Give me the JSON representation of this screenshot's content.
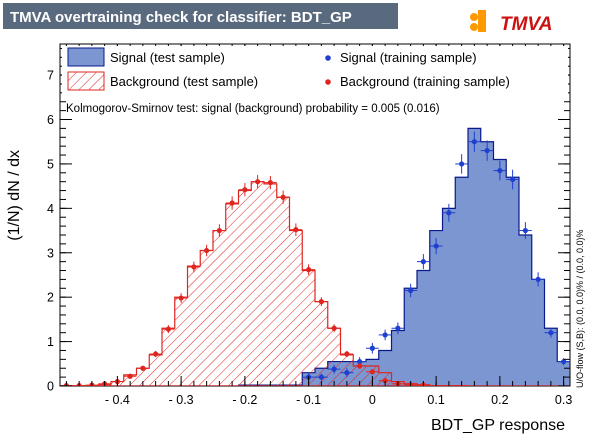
{
  "title": "TMVA overtraining check for classifier: BDT_GP",
  "logo": {
    "text": "TMVA",
    "accent": "#ff9900",
    "text_color": "#cc1111"
  },
  "ks_text": "Kolmogorov-Smirnov test: signal (background) probability = 0.005 (0.016)",
  "side_text": "U/O-flow (S,B): (0.0, 0.0)% / (0.0, 0.0)%",
  "legend": {
    "signal_test": "Signal (test sample)",
    "background_test": "Background (test sample)",
    "signal_train": "Signal (training sample)",
    "background_train": "Background (training sample)"
  },
  "colors": {
    "title_bg": "#5a6a7e",
    "signal_fill": "#7b96d0",
    "signal_line": "#0a1a8c",
    "signal_marker": "#1f3fcf",
    "background_line": "#e0251f",
    "background_marker": "#e0251f"
  },
  "chart_data": {
    "type": "histogram",
    "xlabel": "BDT_GP response",
    "ylabel": "(1/N) dN / dx",
    "xlim": [
      -0.49,
      0.31
    ],
    "ylim": [
      0,
      7.7
    ],
    "x_ticks": [
      -0.4,
      -0.3,
      -0.2,
      -0.1,
      0,
      0.1,
      0.2,
      0.3
    ],
    "x_tick_labels": [
      "- 0.4",
      "- 0.3",
      "- 0.2",
      "- 0.1",
      "0",
      "0.1",
      "0.2",
      "0.3"
    ],
    "y_ticks": [
      0,
      1,
      2,
      3,
      4,
      5,
      6,
      7
    ],
    "y_tick_labels": [
      "0",
      "1",
      "2",
      "3",
      "4",
      "5",
      "6",
      "7"
    ],
    "bin_edges": [
      -0.49,
      -0.47,
      -0.45,
      -0.43,
      -0.41,
      -0.39,
      -0.37,
      -0.35,
      -0.33,
      -0.31,
      -0.29,
      -0.27,
      -0.25,
      -0.23,
      -0.21,
      -0.19,
      -0.17,
      -0.15,
      -0.13,
      -0.11,
      -0.09,
      -0.07,
      -0.05,
      -0.03,
      -0.01,
      0.01,
      0.03,
      0.05,
      0.07,
      0.09,
      0.11,
      0.13,
      0.15,
      0.17,
      0.19,
      0.21,
      0.23,
      0.25,
      0.27,
      0.29,
      0.31
    ],
    "series": [
      {
        "name": "Signal (test sample)",
        "style": "filled-histogram",
        "values": [
          0,
          0,
          0,
          0,
          0,
          0,
          0,
          0,
          0,
          0,
          0,
          0,
          0,
          0,
          0.02,
          0.02,
          0.02,
          0.02,
          0.02,
          0.3,
          0.4,
          0.55,
          0.55,
          0.55,
          0.6,
          0.8,
          1.25,
          2.2,
          2.6,
          3.5,
          4.0,
          4.7,
          5.8,
          5.5,
          5.1,
          4.7,
          3.4,
          2.4,
          1.3,
          0.55
        ]
      },
      {
        "name": "Background (test sample)",
        "style": "hatched-histogram",
        "values": [
          0,
          0,
          0,
          0.03,
          0.1,
          0.25,
          0.4,
          0.7,
          1.3,
          2.0,
          2.7,
          3.05,
          3.5,
          4.1,
          4.4,
          4.6,
          4.55,
          4.25,
          3.5,
          2.6,
          1.9,
          1.3,
          0.7,
          0.45,
          0.45,
          0.3,
          0.1,
          0.05,
          0.03,
          0.01,
          0.01,
          0.01,
          0,
          0,
          0,
          0,
          0,
          0,
          0,
          0
        ]
      },
      {
        "name": "Signal (training sample)",
        "style": "points",
        "values": [
          null,
          null,
          null,
          null,
          null,
          null,
          null,
          null,
          null,
          null,
          null,
          null,
          null,
          null,
          null,
          null,
          null,
          null,
          null,
          0.2,
          0.2,
          0.38,
          0.3,
          0.55,
          0.85,
          1.15,
          1.3,
          2.15,
          2.8,
          3.15,
          3.9,
          5.0,
          5.5,
          5.3,
          4.85,
          4.65,
          3.5,
          2.4,
          1.2,
          0.55
        ],
        "errors": [
          null,
          null,
          null,
          null,
          null,
          null,
          null,
          null,
          null,
          null,
          null,
          null,
          null,
          null,
          null,
          null,
          null,
          null,
          null,
          0.08,
          0.08,
          0.1,
          0.1,
          0.1,
          0.12,
          0.12,
          0.13,
          0.15,
          0.17,
          0.18,
          0.2,
          0.22,
          0.23,
          0.23,
          0.22,
          0.22,
          0.19,
          0.16,
          0.11,
          0.08
        ]
      },
      {
        "name": "Background (training sample)",
        "style": "points",
        "values": [
          0.01,
          0.01,
          0.02,
          0.05,
          0.1,
          0.22,
          0.4,
          0.72,
          1.28,
          1.98,
          2.68,
          3.05,
          3.5,
          4.12,
          4.42,
          4.6,
          4.58,
          4.25,
          3.52,
          2.62,
          1.9,
          1.3,
          0.72,
          0.45,
          0.32,
          0.12,
          0.05,
          0.03,
          0.02,
          null,
          null,
          null,
          null,
          null,
          null,
          null,
          null,
          null,
          null,
          null
        ],
        "errors": [
          0.01,
          0.01,
          0.01,
          0.02,
          0.03,
          0.04,
          0.05,
          0.07,
          0.09,
          0.11,
          0.12,
          0.13,
          0.14,
          0.15,
          0.15,
          0.15,
          0.15,
          0.15,
          0.14,
          0.12,
          0.1,
          0.09,
          0.07,
          0.06,
          0.05,
          0.03,
          0.02,
          0.02,
          0.01,
          null,
          null,
          null,
          null,
          null,
          null,
          null,
          null,
          null,
          null,
          null
        ]
      }
    ],
    "grid": false,
    "legend_position": "top"
  }
}
